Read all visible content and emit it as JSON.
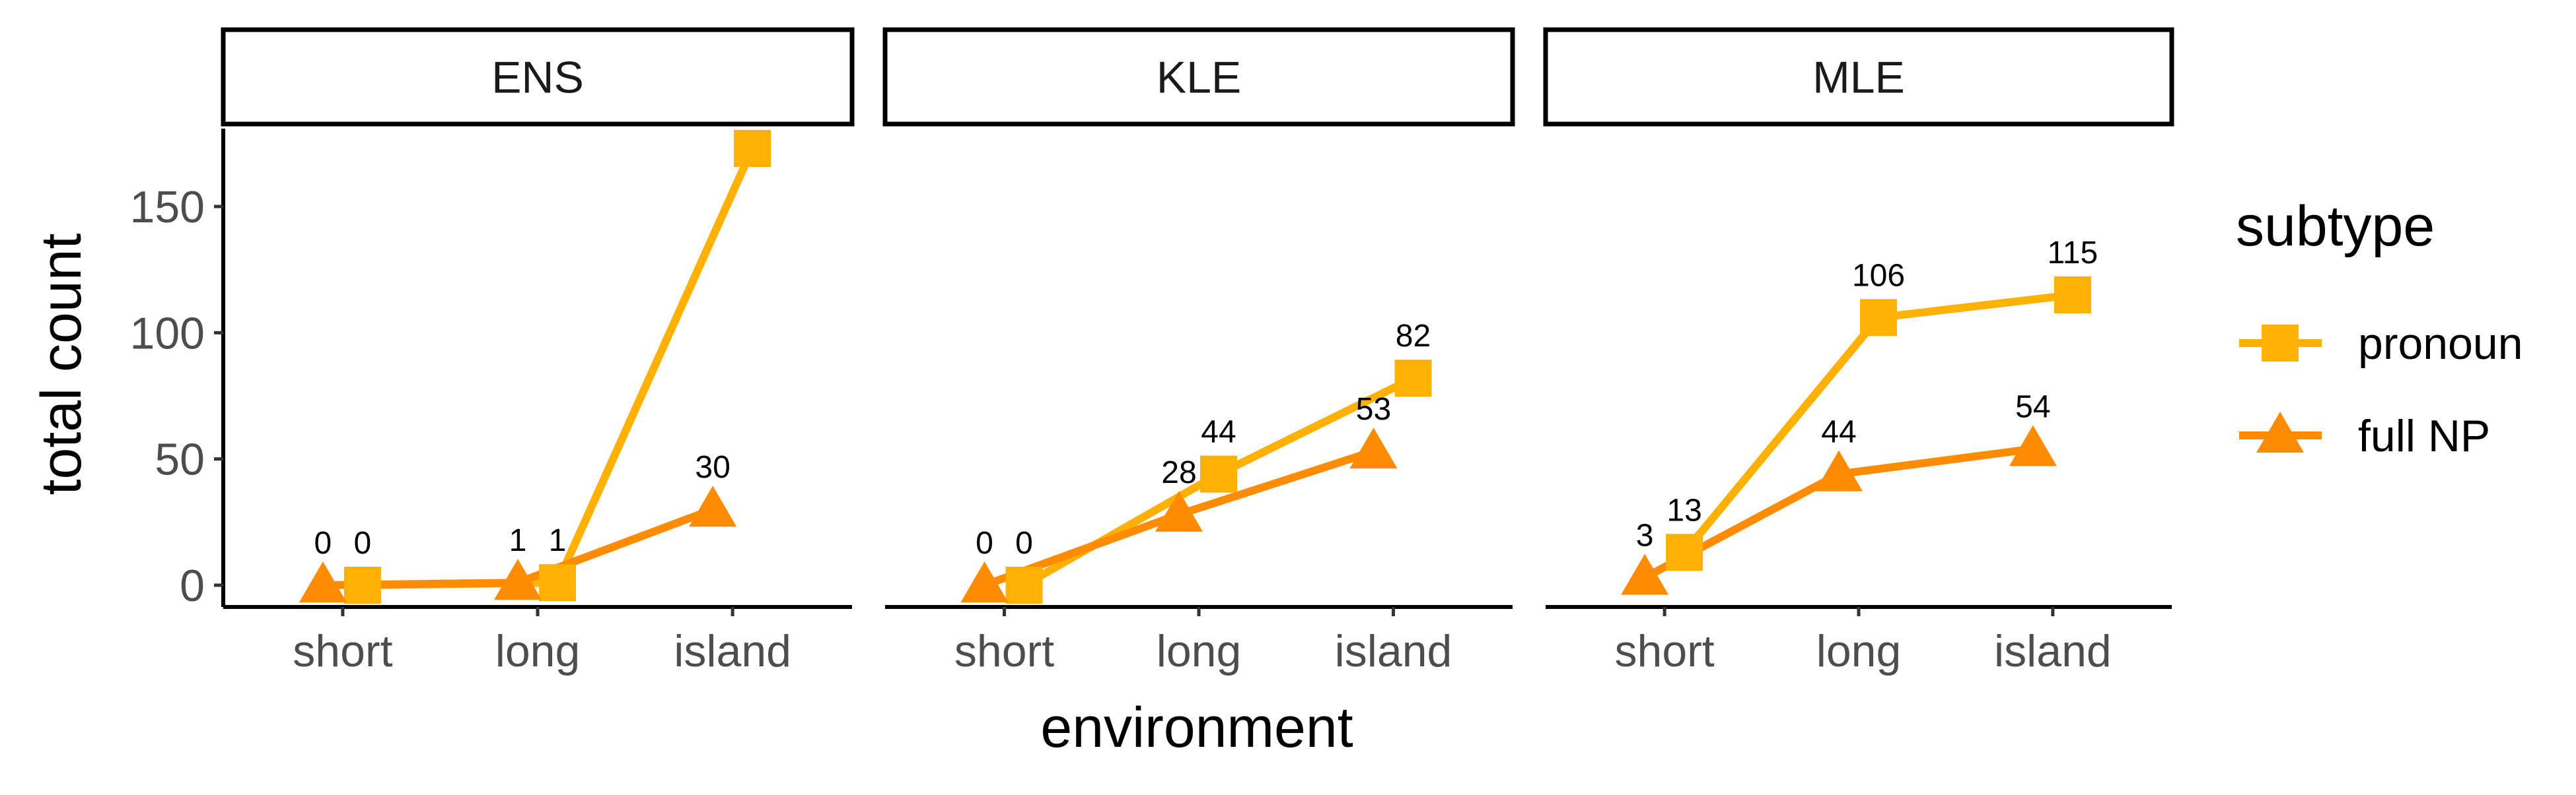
{
  "chart_data": {
    "type": "line",
    "facet_variable": "panel",
    "facets": [
      "ENS",
      "KLE",
      "MLE"
    ],
    "categories": [
      "short",
      "long",
      "island"
    ],
    "xlabel": "environment",
    "ylabel": "total count",
    "ylim": [
      -8,
      180
    ],
    "yticks": [
      0,
      50,
      100,
      150
    ],
    "legend": {
      "title": "subtype",
      "placement": "right",
      "entries": [
        {
          "name": "pronoun",
          "shape": "square",
          "color": "#FFB000"
        },
        {
          "name": "full NP",
          "shape": "triangle",
          "color": "#FF8C00"
        }
      ]
    },
    "series": [
      {
        "name": "pronoun",
        "shape": "square",
        "color": "#FFB000",
        "values": {
          "ENS": [
            0,
            1,
            173
          ],
          "KLE": [
            0,
            44,
            82
          ],
          "MLE": [
            13,
            106,
            115
          ]
        },
        "labels": {
          "ENS": [
            "0",
            "1",
            ""
          ],
          "KLE": [
            "0",
            "44",
            "82"
          ],
          "MLE": [
            "13",
            "106",
            "115"
          ]
        }
      },
      {
        "name": "full NP",
        "shape": "triangle",
        "color": "#FF8C00",
        "values": {
          "ENS": [
            0,
            1,
            30
          ],
          "KLE": [
            0,
            28,
            53
          ],
          "MLE": [
            3,
            44,
            54
          ]
        },
        "labels": {
          "ENS": [
            "0",
            "1",
            "30"
          ],
          "KLE": [
            "0",
            "28",
            "53"
          ],
          "MLE": [
            "3",
            "44",
            "54"
          ]
        }
      }
    ],
    "grid": false
  }
}
